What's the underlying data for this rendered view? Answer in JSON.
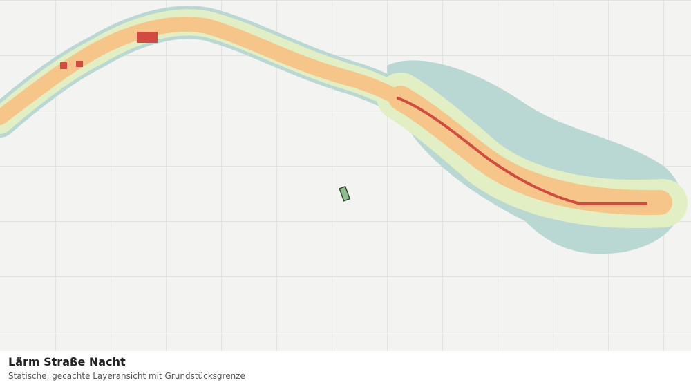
{
  "title": "Lärm Straße Nacht",
  "subtitle": "Statische, gecachte Layeransicht mit Grundstücksgrenze"
}
